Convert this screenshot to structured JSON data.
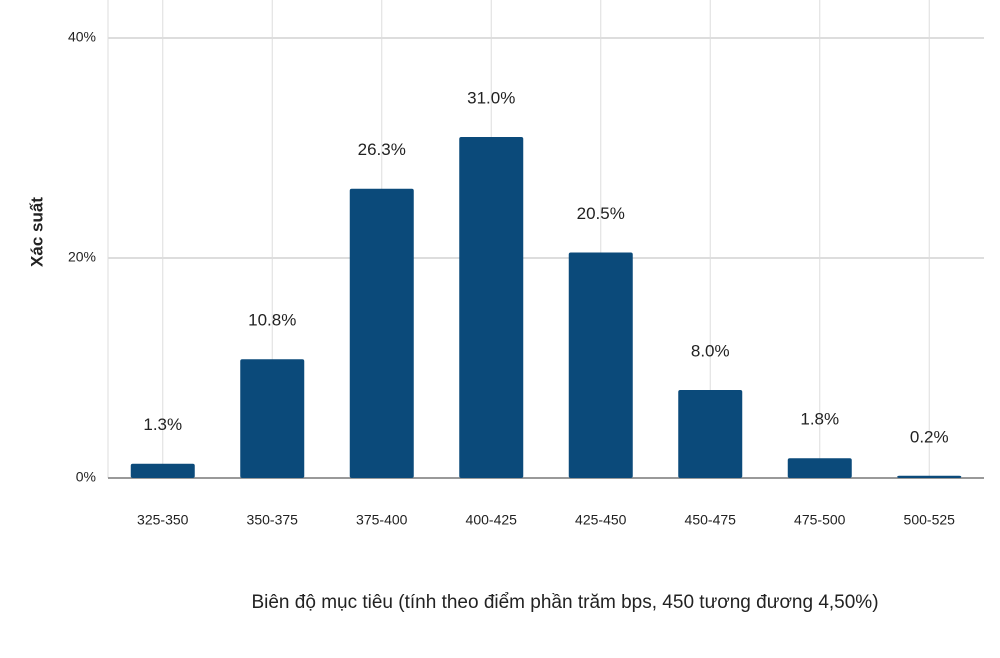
{
  "chart_data": {
    "type": "bar",
    "x_label": "Biên độ mục tiêu (tính theo điểm phần trăm bps, 450 tương đương 4,50%)",
    "y_label": "Xác suất",
    "categories": [
      "325-350",
      "350-375",
      "375-400",
      "400-425",
      "425-450",
      "450-475",
      "475-500",
      "500-525"
    ],
    "values": [
      1.3,
      10.8,
      26.3,
      31.0,
      20.5,
      8.0,
      1.8,
      0.2
    ],
    "value_labels": [
      "1.3%",
      "10.8%",
      "26.3%",
      "31.0%",
      "20.5%",
      "8.0%",
      "1.8%",
      "0.2%"
    ],
    "color": "#0b4a7a",
    "ylim": [
      0,
      40
    ],
    "yticks": [
      {
        "value": 0,
        "label": "0%"
      },
      {
        "value": 20,
        "label": "20%"
      },
      {
        "value": 40,
        "label": "40%"
      }
    ],
    "grid": true
  }
}
